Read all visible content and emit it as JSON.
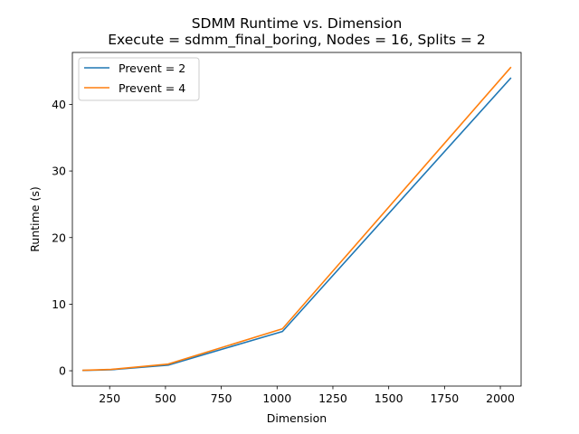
{
  "chart_data": {
    "type": "line",
    "title": "SDMM Runtime vs. Dimension",
    "subtitle": "Execute = sdmm_final_boring, Nodes = 16, Splits = 2",
    "xlabel": "Dimension",
    "ylabel": "Runtime (s)",
    "xlim": [
      83,
      2093
    ],
    "ylim": [
      -2.3,
      47.8
    ],
    "xticks": [
      250,
      500,
      750,
      1000,
      1250,
      1500,
      1750,
      2000
    ],
    "yticks": [
      0,
      10,
      20,
      30,
      40
    ],
    "grid": false,
    "legend_position": "top-left",
    "series": [
      {
        "name": "Prevent = 2",
        "color": "#1f77b4",
        "x": [
          128,
          256,
          512,
          1024,
          2048
        ],
        "y": [
          0.05,
          0.15,
          0.85,
          5.9,
          44.0
        ]
      },
      {
        "name": "Prevent = 4",
        "color": "#ff7f0e",
        "x": [
          128,
          256,
          512,
          1024,
          2048
        ],
        "y": [
          0.07,
          0.2,
          1.0,
          6.3,
          45.6
        ]
      }
    ]
  }
}
